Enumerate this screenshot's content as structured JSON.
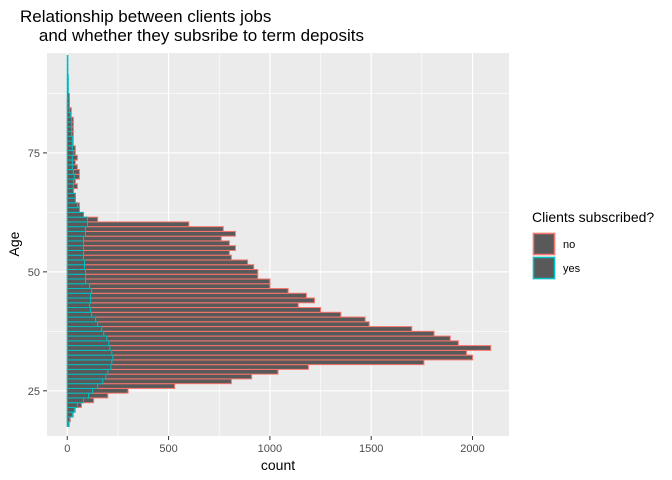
{
  "chart_data": {
    "type": "bar",
    "orientation": "horizontal",
    "title": "Relationship between clients jobs\n    and whether they subsribe to term deposits",
    "xlabel": "count",
    "ylabel": "Age",
    "xlim": [
      -100,
      2180
    ],
    "ylim": [
      15.5,
      96
    ],
    "xticks": [
      0,
      500,
      1000,
      1500,
      2000
    ],
    "yticks": [
      25,
      50,
      75
    ],
    "grid": true,
    "legend": {
      "title": "Clients subscribed?",
      "position": "right"
    },
    "bin_width": 1,
    "series": [
      {
        "name": "no",
        "color": "#F8766D",
        "fill": "#595959",
        "ages": [
          18,
          19,
          20,
          21,
          22,
          23,
          24,
          25,
          26,
          27,
          28,
          29,
          30,
          31,
          32,
          33,
          34,
          35,
          36,
          37,
          38,
          39,
          40,
          41,
          42,
          43,
          44,
          45,
          46,
          47,
          48,
          49,
          50,
          51,
          52,
          53,
          54,
          55,
          56,
          57,
          58,
          59,
          60,
          61,
          62,
          63,
          64,
          65,
          66,
          67,
          68,
          69,
          70,
          71,
          72,
          73,
          74,
          75,
          76,
          77,
          78,
          79,
          80,
          81,
          82,
          83,
          84,
          85,
          86
        ],
        "values": [
          10,
          15,
          30,
          40,
          70,
          130,
          200,
          300,
          530,
          810,
          910,
          1040,
          1190,
          1760,
          2000,
          1970,
          2090,
          1930,
          1890,
          1810,
          1700,
          1490,
          1470,
          1350,
          1250,
          1140,
          1220,
          1180,
          1090,
          1000,
          1000,
          940,
          940,
          920,
          890,
          810,
          800,
          830,
          800,
          760,
          830,
          770,
          600,
          150,
          60,
          50,
          60,
          40,
          40,
          30,
          50,
          40,
          60,
          60,
          50,
          40,
          50,
          40,
          40,
          30,
          30,
          30,
          30,
          30,
          30,
          20,
          20,
          10,
          10
        ]
      },
      {
        "name": "yes",
        "color": "#00BFC4",
        "fill": "#595959",
        "ages": [
          18,
          19,
          20,
          21,
          22,
          23,
          24,
          25,
          26,
          27,
          28,
          29,
          30,
          31,
          32,
          33,
          34,
          35,
          36,
          37,
          38,
          39,
          40,
          41,
          42,
          43,
          44,
          45,
          46,
          47,
          48,
          49,
          50,
          51,
          52,
          53,
          54,
          55,
          56,
          57,
          58,
          59,
          60,
          61,
          62,
          63,
          64,
          65,
          66,
          67,
          68,
          69,
          70,
          71,
          72,
          73,
          74,
          75,
          76,
          77,
          78,
          79,
          80,
          81,
          82,
          83,
          84,
          85,
          86,
          87,
          88,
          89,
          90,
          91,
          92,
          93,
          94,
          95
        ],
        "values": [
          7,
          12,
          25,
          35,
          50,
          80,
          105,
          125,
          150,
          175,
          190,
          200,
          215,
          220,
          225,
          220,
          210,
          205,
          195,
          180,
          170,
          150,
          140,
          120,
          115,
          110,
          115,
          115,
          120,
          110,
          90,
          90,
          90,
          85,
          85,
          80,
          80,
          80,
          80,
          80,
          90,
          90,
          100,
          100,
          80,
          60,
          50,
          40,
          40,
          30,
          30,
          30,
          35,
          30,
          25,
          25,
          25,
          30,
          25,
          25,
          25,
          20,
          20,
          20,
          20,
          15,
          10,
          10,
          10,
          10,
          5,
          5,
          5,
          5,
          3,
          3,
          3,
          3
        ]
      }
    ]
  }
}
